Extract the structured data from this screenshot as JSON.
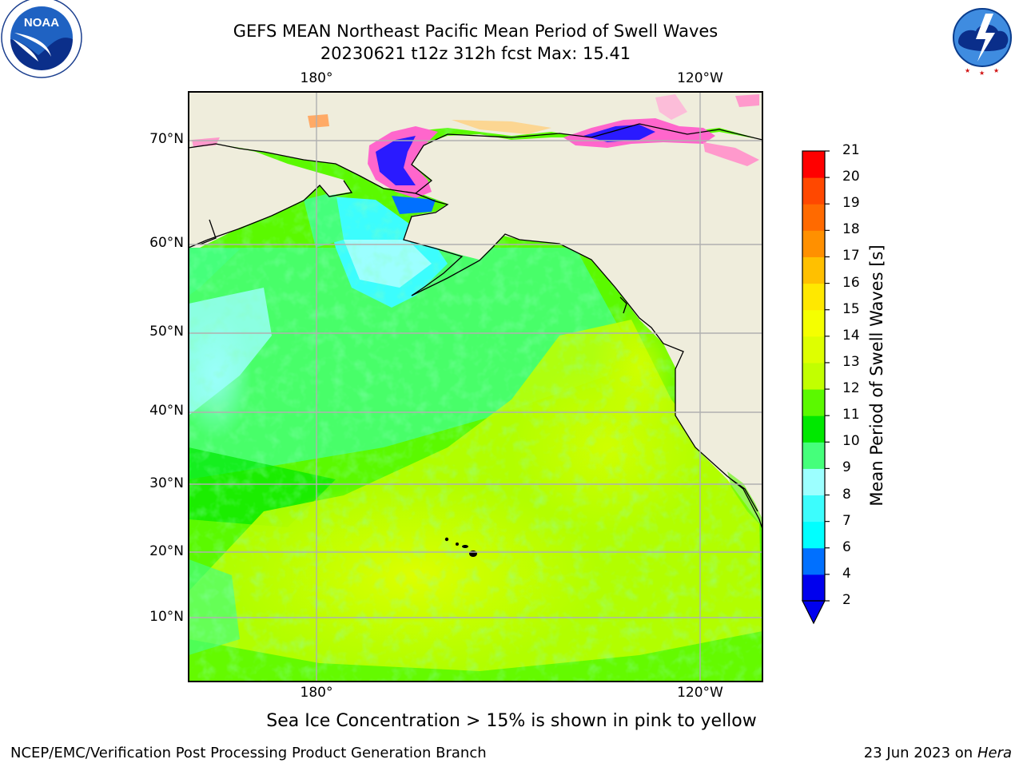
{
  "title": {
    "line1": "GEFS MEAN Northeast Pacific Mean Period of Swell Waves",
    "line2": "20230621 t12z 312h fcst   Max: 15.41"
  },
  "map": {
    "lon_labels": [
      "180°",
      "120°W"
    ],
    "lat_labels": [
      "70°N",
      "60°N",
      "50°N",
      "40°N",
      "30°N",
      "20°N",
      "10°N"
    ],
    "land_color": "#efeddc",
    "grid_color": "#b0b0b0"
  },
  "colorbar": {
    "title": "Mean Period of Swell Waves [s]",
    "ticks": [
      "2",
      "4",
      "6",
      "7",
      "8",
      "9",
      "10",
      "11",
      "12",
      "13",
      "14",
      "15",
      "16",
      "17",
      "18",
      "19",
      "20",
      "21"
    ],
    "colors": [
      "#0000ee",
      "#0070ff",
      "#00ffff",
      "#3cfdfd",
      "#9cffff",
      "#45ff7b",
      "#00e800",
      "#5bf900",
      "#c2ff00",
      "#deff00",
      "#f5ff00",
      "#ffe800",
      "#ffc000",
      "#ff9000",
      "#ff6a00",
      "#ff4800",
      "#ff0000"
    ],
    "under_color": "#0000ee"
  },
  "note": "Sea Ice Concentration > 15% is shown in pink to yellow",
  "footer": {
    "left": "NCEP/EMC/Verification Post Processing Product Generation Branch",
    "right_prefix": "23 Jun 2023 on",
    "right_machine": "Hera"
  },
  "logos": {
    "noaa_text": "NOAA",
    "noaa_ring_text": "NATIONAL OCEANIC AND ATMOSPHERIC ADMINISTRATION · U.S. DEPARTMENT OF COMMERCE",
    "nws_ring_text": "NATIONAL WEATHER SERVICE"
  }
}
